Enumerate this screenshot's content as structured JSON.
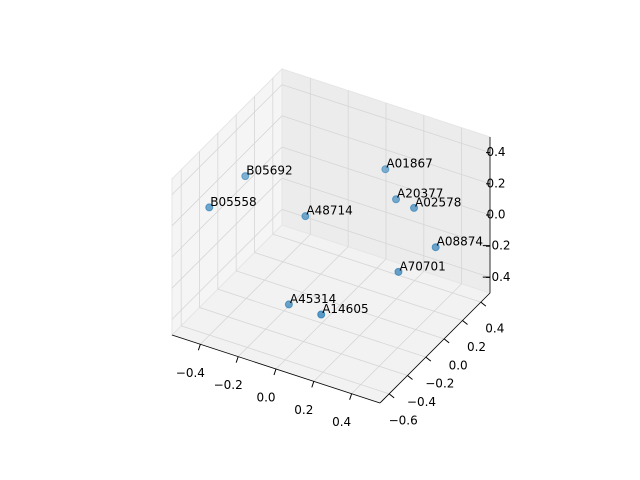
{
  "chart_data": {
    "type": "scatter3d",
    "color": "#1f77b4",
    "labels": [
      "B05692",
      "B05558",
      "A48714",
      "A01867",
      "A20377",
      "A02578",
      "A08874",
      "A70701",
      "A45314",
      "A14605"
    ],
    "x": [
      -0.4,
      -0.45,
      -0.15,
      0.05,
      0.15,
      0.25,
      0.35,
      0.25,
      -0.15,
      0.05
    ],
    "y": [
      -0.21,
      -0.5,
      -0.07,
      0.39,
      0.3,
      0.29,
      0.32,
      0.12,
      -0.25,
      -0.31
    ],
    "z": [
      0.29,
      0.24,
      0.05,
      0.16,
      0.06,
      0.05,
      -0.18,
      -0.26,
      -0.41,
      -0.36
    ],
    "xlim": [
      -0.55,
      0.55
    ],
    "ylim": [
      -0.7,
      0.5
    ],
    "zlim": [
      -0.5,
      0.5
    ],
    "xticks": [
      {
        "value": -0.4,
        "label": "−0.4"
      },
      {
        "value": -0.2,
        "label": "−0.2"
      },
      {
        "value": 0,
        "label": "0.0"
      },
      0.2,
      0.4
    ],
    "yticks": [
      {
        "value": -0.6,
        "label": "−0.6"
      },
      {
        "value": -0.4,
        "label": "−0.4"
      },
      {
        "value": -0.2,
        "label": "−0.2"
      },
      {
        "value": 0,
        "label": "0.0"
      },
      0.2,
      0.4
    ],
    "zticks": [
      {
        "value": -0.4,
        "label": "−0.4"
      },
      {
        "value": -0.2,
        "label": "−0.2"
      },
      {
        "value": 0,
        "label": "0.0"
      },
      0.2,
      0.4
    ],
    "grid": true
  }
}
